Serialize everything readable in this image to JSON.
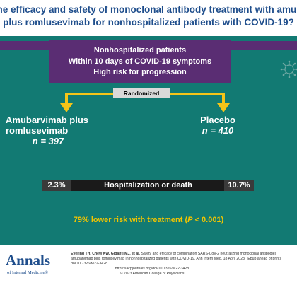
{
  "question": {
    "line1": "s the efficacy and safety of monoclonal antibody treatment with amubar",
    "line2": "plus romlusevimab for nonhospitalized patients with COVID-19?"
  },
  "population": {
    "lines": [
      "Nonhospitalized patients",
      "Within 10 days of COVID-19 symptoms",
      "High risk for progression"
    ]
  },
  "randomized_label": "Randomized",
  "arms": {
    "treatment": {
      "name_line1": "Amubarvimab plus",
      "name_line2": "romlusevimab",
      "n": "n = 397"
    },
    "placebo": {
      "name": "Placebo",
      "n": "n = 410"
    }
  },
  "outcome": {
    "label": "Hospitalization or death",
    "treatment_pct": "2.3%",
    "placebo_pct": "10.7%"
  },
  "result": {
    "text_before": "79% lower risk with treatment (",
    "p_symbol": "P",
    "text_after": " < 0.001)"
  },
  "footer": {
    "logo_main": "Annals",
    "logo_sub": "of Internal Medicine®",
    "citation_authors": "Evering TH, Chew KW, Giganti MJ, et al.",
    "citation_text": " Safety and efficacy of combination SARS-CoV-2 neutralizing monoclonal antibodies amubarvimab plus romlusevimab in nonhospitalized patients with COVID-19. Ann Intern Med. 18 April 2023. [Epub ahead of print]. doi:10.7326/M22-3428",
    "url": "https://acpjournals.org/doi/10.7326/M22-3428",
    "copyright": "© 2023 American College of Physicians"
  },
  "colors": {
    "teal": "#127a73",
    "purple": "#5a2d73",
    "navy": "#1f4e8c",
    "gold": "#f2c400",
    "bracket": "#f5c518"
  },
  "icons": {
    "virus": "coronavirus-icon"
  }
}
